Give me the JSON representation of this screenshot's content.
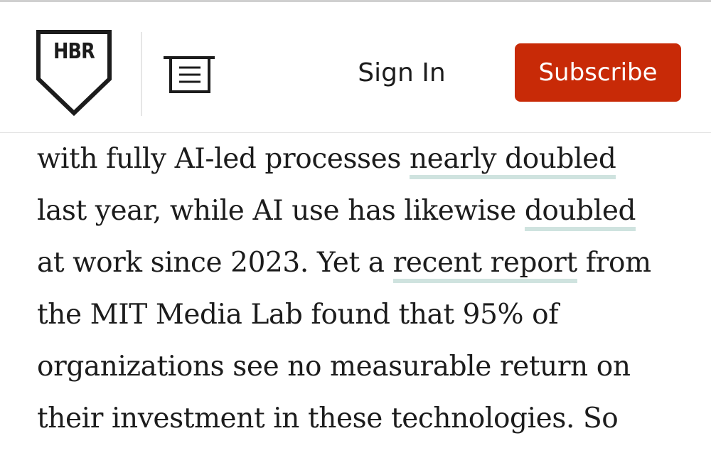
{
  "header": {
    "logo_text": "HBR",
    "menu_icon": "menu-icon",
    "sign_in_label": "Sign In",
    "subscribe_label": "Subscribe"
  },
  "colors": {
    "subscribe_bg": "#c82a07",
    "link_underline": "#cfe3df",
    "text": "#1c1c1c"
  },
  "article": {
    "lines": [
      [
        {
          "text": "with fully AI-led processes "
        },
        {
          "text": "nearly doubled",
          "link": true
        }
      ],
      [
        {
          "text": "last year, while AI use has likewise "
        },
        {
          "text": "doubled",
          "link": true
        }
      ],
      [
        {
          "text": "at work since 2023. Yet a "
        },
        {
          "text": "recent report",
          "link": true
        },
        {
          "text": " from"
        }
      ],
      [
        {
          "text": "the MIT Media Lab found that 95% of"
        }
      ],
      [
        {
          "text": "organizations see no measurable return on"
        }
      ],
      [
        {
          "text": "their investment in these technologies. So"
        }
      ]
    ]
  }
}
